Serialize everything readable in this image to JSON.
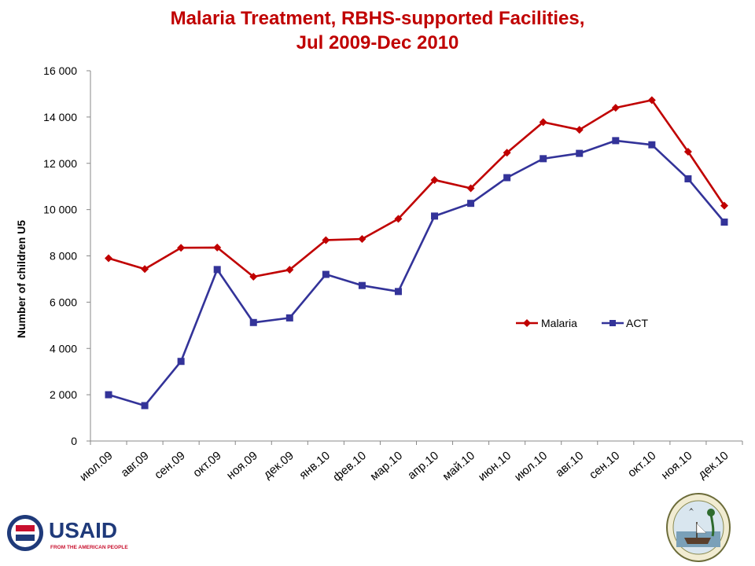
{
  "chart_data": {
    "type": "line",
    "title_line1": "Malaria Treatment, RBHS-supported Facilities,",
    "title_line2": "Jul 2009-Dec 2010",
    "xlabel": "",
    "ylabel": "Number of children U5",
    "ylim": [
      0,
      16000
    ],
    "yticks": [
      {
        "value": 0,
        "label": "0"
      },
      {
        "value": 2000,
        "label": "2 000"
      },
      {
        "value": 4000,
        "label": "4 000"
      },
      {
        "value": 6000,
        "label": "6 000"
      },
      {
        "value": 8000,
        "label": "8 000"
      },
      {
        "value": 10000,
        "label": "10 000"
      },
      {
        "value": 12000,
        "label": "12 000"
      },
      {
        "value": 14000,
        "label": "14 000"
      },
      {
        "value": 16000,
        "label": "16 000"
      }
    ],
    "categories": [
      "июл.09",
      "авг.09",
      "сен.09",
      "окт.09",
      "ноя.09",
      "дек.09",
      "янв.10",
      "фев.10",
      "мар.10",
      "апр.10",
      "май.10",
      "июн.10",
      "июл.10",
      "авг.10",
      "сен.10",
      "окт.10",
      "ноя.10",
      "дек.10"
    ],
    "series": [
      {
        "name": "Malaria",
        "color": "#C00000",
        "marker": "diamond",
        "values": [
          7900,
          7430,
          8350,
          8360,
          7100,
          7400,
          8680,
          8730,
          9600,
          11280,
          10920,
          12460,
          13780,
          13450,
          14400,
          14730,
          12500,
          10170
        ]
      },
      {
        "name": "ACT",
        "color": "#333399",
        "marker": "square",
        "values": [
          2000,
          1530,
          3440,
          7410,
          5120,
          5320,
          7200,
          6720,
          6460,
          9720,
          10270,
          11380,
          12200,
          12430,
          12980,
          12800,
          11330,
          9460
        ]
      }
    ],
    "legend_position": "inside-right",
    "grid": false
  },
  "logos": {
    "usaid_text": "USAID",
    "usaid_subtext": "FROM THE AMERICAN PEOPLE"
  }
}
